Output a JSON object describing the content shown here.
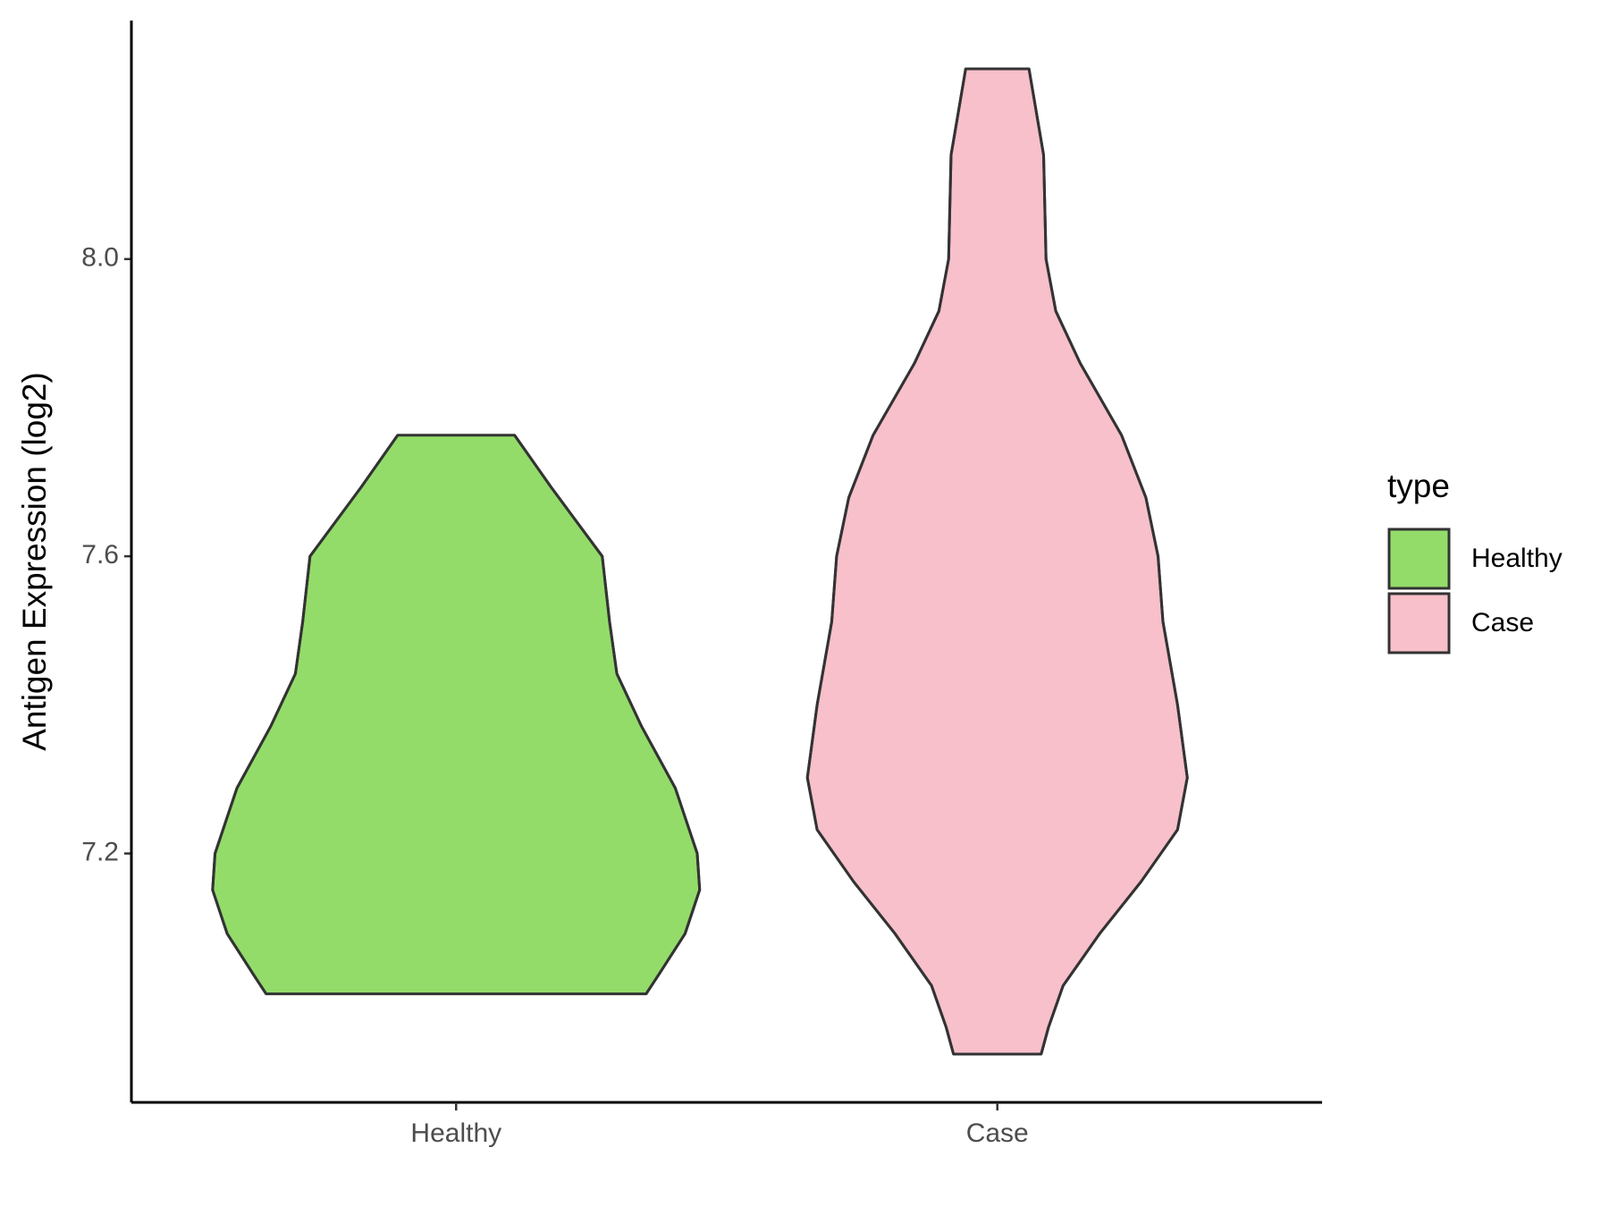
{
  "chart_data": {
    "type": "violin",
    "y_label": "Antigen Expression (log2)",
    "categories": [
      "Healthy",
      "Case"
    ],
    "ylim": [
      6.865,
      8.321
    ],
    "yticks": [
      {
        "value": 7.2,
        "label": "7.2"
      },
      {
        "value": 7.6,
        "label": "7.6"
      },
      {
        "value": 8.0,
        "label": "8.0"
      }
    ],
    "legend_title": "type",
    "legend_position": "right",
    "series": [
      {
        "name": "Healthy",
        "color": "#93dc6a",
        "y": [
          7.763,
          7.693,
          7.6,
          7.512,
          7.442,
          7.372,
          7.288,
          7.2,
          7.151,
          7.092,
          7.036,
          7.011
        ],
        "density": [
          0.24,
          0.39,
          0.6,
          0.63,
          0.66,
          0.76,
          0.9,
          0.99,
          1.0,
          0.94,
          0.83,
          0.78
        ]
      },
      {
        "name": "Case",
        "color": "#f7c0cb",
        "y": [
          8.256,
          8.14,
          8.0,
          7.93,
          7.86,
          7.763,
          7.679,
          7.6,
          7.512,
          7.4,
          7.302,
          7.232,
          7.162,
          7.092,
          7.022,
          6.966,
          6.93
        ],
        "density": [
          0.13,
          0.19,
          0.2,
          0.24,
          0.34,
          0.51,
          0.61,
          0.66,
          0.68,
          0.74,
          0.78,
          0.74,
          0.59,
          0.42,
          0.27,
          0.21,
          0.18
        ]
      }
    ]
  }
}
